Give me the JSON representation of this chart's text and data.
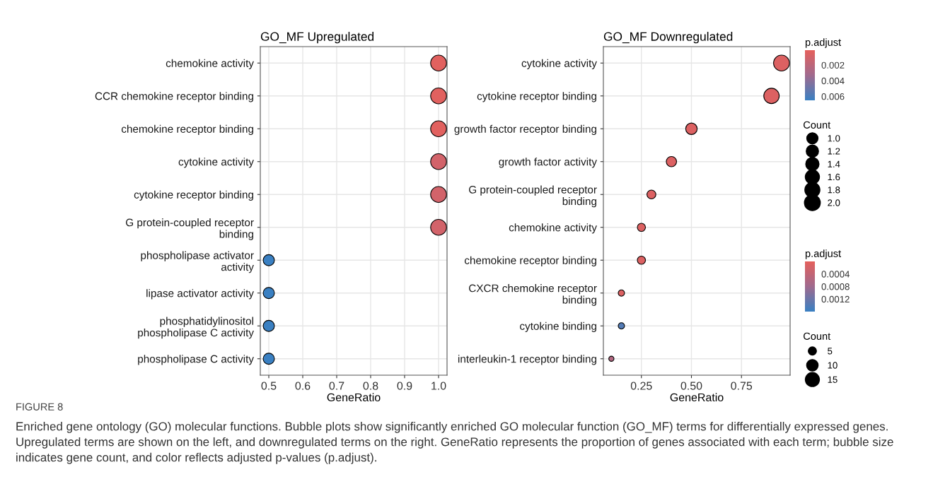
{
  "chart_data": [
    {
      "type": "bubble",
      "title": "GO_MF Upregulated",
      "xlabel": "GeneRatio",
      "orientation": "horizontal",
      "grid": true,
      "categories": [
        "chemokine activity",
        "CCR chemokine receptor binding",
        "chemokine receptor binding",
        "cytokine activity",
        "cytokine receptor binding",
        "G protein-coupled receptor\nbinding",
        "phospholipase activator\nactivity",
        "lipase activator activity",
        "phosphatidylinositol\nphospholipase C activity",
        "phospholipase C activity"
      ],
      "values": [
        1.0,
        1.0,
        1.0,
        1.0,
        1.0,
        1.0,
        0.5,
        0.5,
        0.5,
        0.5
      ],
      "sizes": [
        2,
        2,
        2,
        2,
        2,
        2,
        1,
        1,
        1,
        1
      ],
      "cvalues": [
        0.0003,
        0.0003,
        0.0003,
        0.001,
        0.001,
        0.001,
        0.0065,
        0.0065,
        0.0065,
        0.0065
      ],
      "xlim": [
        0.475,
        1.025
      ],
      "xticks": [
        0.5,
        0.6,
        0.7,
        0.8,
        0.9,
        {
          "value": 1.0,
          "label": "1.0"
        }
      ],
      "clabel": "p.adjust",
      "clim": [
        0.0065,
        0.0001
      ],
      "cticks": [
        0.002,
        0.004,
        0.006
      ],
      "legend_title": "Count",
      "size_legend": [
        {
          "value": 1.0,
          "label": "1.0"
        },
        1.2,
        1.4,
        1.6,
        1.8,
        {
          "value": 2.0,
          "label": "2.0"
        }
      ],
      "annotations": [
        "FIGURE 8",
        "Enriched gene ontology (GO) molecular functions. Bubble plots show significantly enriched GO molecular function (GO_MF) terms for differentially expressed genes. Upregulated terms are shown on the left, and downregulated terms on the right. GeneRatio represents the proportion of genes associated with each term; bubble size indicates gene count, and color reflects adjusted p-values (p.adjust)."
      ]
    },
    {
      "type": "bubble",
      "title": "GO_MF Downregulated",
      "xlabel": "GeneRatio",
      "orientation": "horizontal",
      "grid": true,
      "categories": [
        "cytokine activity",
        "cytokine receptor binding",
        "growth factor receptor binding",
        "growth factor activity",
        "G protein-coupled receptor\nbinding",
        "chemokine activity",
        "chemokine receptor binding",
        "CXCR chemokine receptor\nbinding",
        "cytokine binding",
        "interleukin-1 receptor binding"
      ],
      "values": [
        0.95,
        0.9,
        0.5,
        0.4,
        0.3,
        0.25,
        0.25,
        0.15,
        0.15,
        0.1
      ],
      "sizes": [
        19,
        18,
        10,
        8,
        6,
        5,
        5,
        3,
        3,
        2
      ],
      "cvalues": [
        0.0001,
        0.0001,
        0.0001,
        0.0001,
        0.0001,
        0.0001,
        0.0001,
        0.0001,
        0.0014,
        0.0006
      ],
      "xlim": [
        0.06,
        0.993
      ],
      "xticks": [
        {
          "value": 0.25,
          "label": "0.25"
        },
        {
          "value": 0.5,
          "label": "0.50"
        },
        {
          "value": 0.75,
          "label": "0.75"
        }
      ],
      "clabel": "p.adjust",
      "clim": [
        0.0016,
        0.0
      ],
      "cticks": [
        0.0004,
        0.0008,
        0.0012
      ],
      "legend_title": "Count",
      "size_legend": [
        5,
        10,
        15
      ]
    }
  ]
}
